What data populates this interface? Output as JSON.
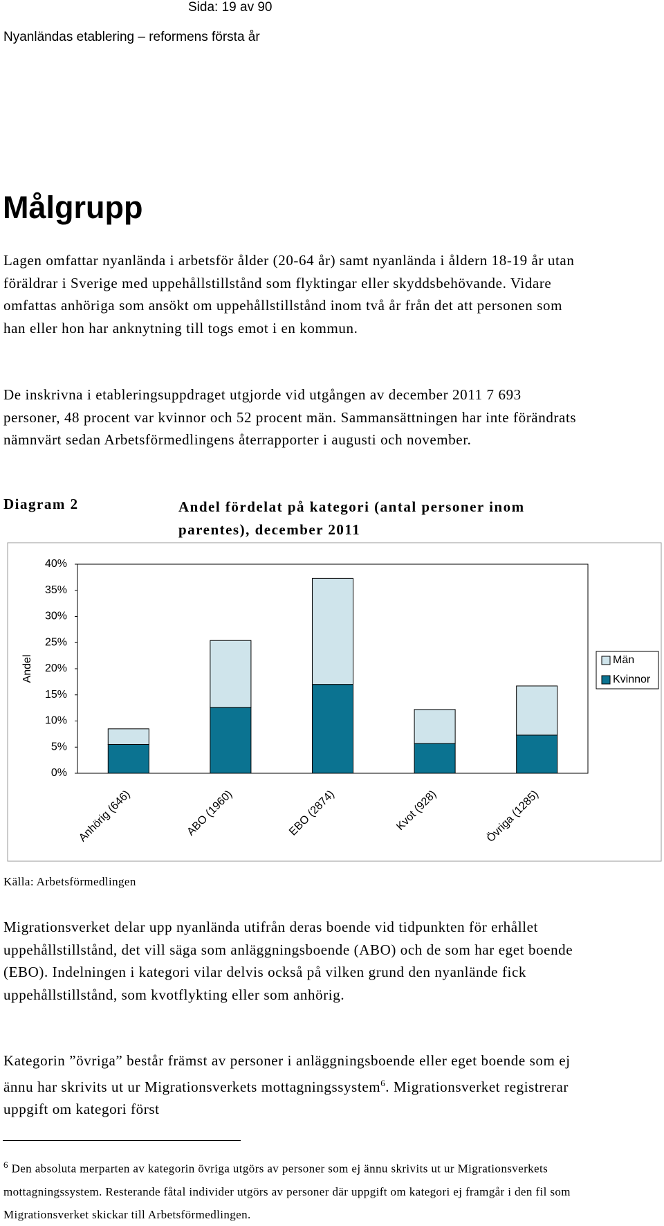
{
  "header": {
    "page": "Sida: 19 av 90",
    "running_title": "Nyanländas etablering – reformens första år"
  },
  "heading": "Målgrupp",
  "paragraphs": [
    "Lagen omfattar nyanlända i arbetsför ålder (20-64 år) samt nyanlända i åldern 18-19 år utan föräldrar i Sverige med uppehållstillstånd som flyktingar eller skyddsbehövande. Vidare omfattas anhöriga som ansökt om uppehållstillstånd inom två år från det att personen som han eller hon har anknytning till togs emot i en kommun.",
    "De inskrivna i etableringsuppdraget utgjorde vid utgången av december 2011 7 693 personer, 48 procent var kvinnor och 52 procent män. Sammansättningen har inte förändrats nämnvärt sedan Arbetsförmedlingens återrapporter i augusti och november."
  ],
  "figure": {
    "label": "Diagram 2",
    "caption": "Andel fördelat på kategori (antal personer inom parentes), december 2011",
    "source": "Källa: Arbetsförmedlingen"
  },
  "chart_data": {
    "type": "bar",
    "stacked": true,
    "categories": [
      "Anhörig (646)",
      "ABO (1960)",
      "EBO (2874)",
      "Kvot (928)",
      "Övriga (1285)"
    ],
    "series": [
      {
        "name": "Kvinnor",
        "color": "#0b7391",
        "values": [
          5.5,
          12.6,
          17.0,
          5.7,
          7.3
        ]
      },
      {
        "name": "Män",
        "color": "#cfe4eb",
        "values": [
          3.0,
          12.8,
          20.3,
          6.5,
          9.4
        ]
      }
    ],
    "y_label": "Andel",
    "ylim": [
      0,
      40
    ],
    "yticks": [
      {
        "value": 0,
        "label": "0%"
      },
      {
        "value": 5,
        "label": "5%"
      },
      {
        "value": 10,
        "label": "10%"
      },
      {
        "value": 15,
        "label": "15%"
      },
      {
        "value": 20,
        "label": "20%"
      },
      {
        "value": 25,
        "label": "25%"
      },
      {
        "value": 30,
        "label": "30%"
      },
      {
        "value": 35,
        "label": "35%"
      },
      {
        "value": 40,
        "label": "40%"
      }
    ],
    "grid": false,
    "legend": "right"
  },
  "paragraphs_after": [
    "Migrationsverket delar upp nyanlända utifrån deras boende vid tidpunkten för erhållet uppehållstillstånd, det vill säga som anläggningsboende (ABO) och de som har eget boende (EBO). Indelningen i kategori vilar delvis också på vilken grund den nyanlände fick uppehållstillstånd, som kvotflykting eller som anhörig.",
    {
      "before": "Kategorin ”övriga” består främst av personer i anläggningsboende eller eget boende som ej ännu har skrivits ut ur Migrationsverkets mottagningssystem",
      "ref": "6",
      "after": ". Migrationsverket registrerar uppgift om kategori först"
    }
  ],
  "footnote": {
    "number": "6",
    "text": "Den absoluta merparten av kategorin övriga utgörs av personer som ej ännu skrivits ut ur Migrationsverkets mottagningssystem. Resterande fåtal individer utgörs av personer där uppgift om kategori ej framgår i den fil som Migrationsverket skickar till Arbetsförmedlingen."
  }
}
